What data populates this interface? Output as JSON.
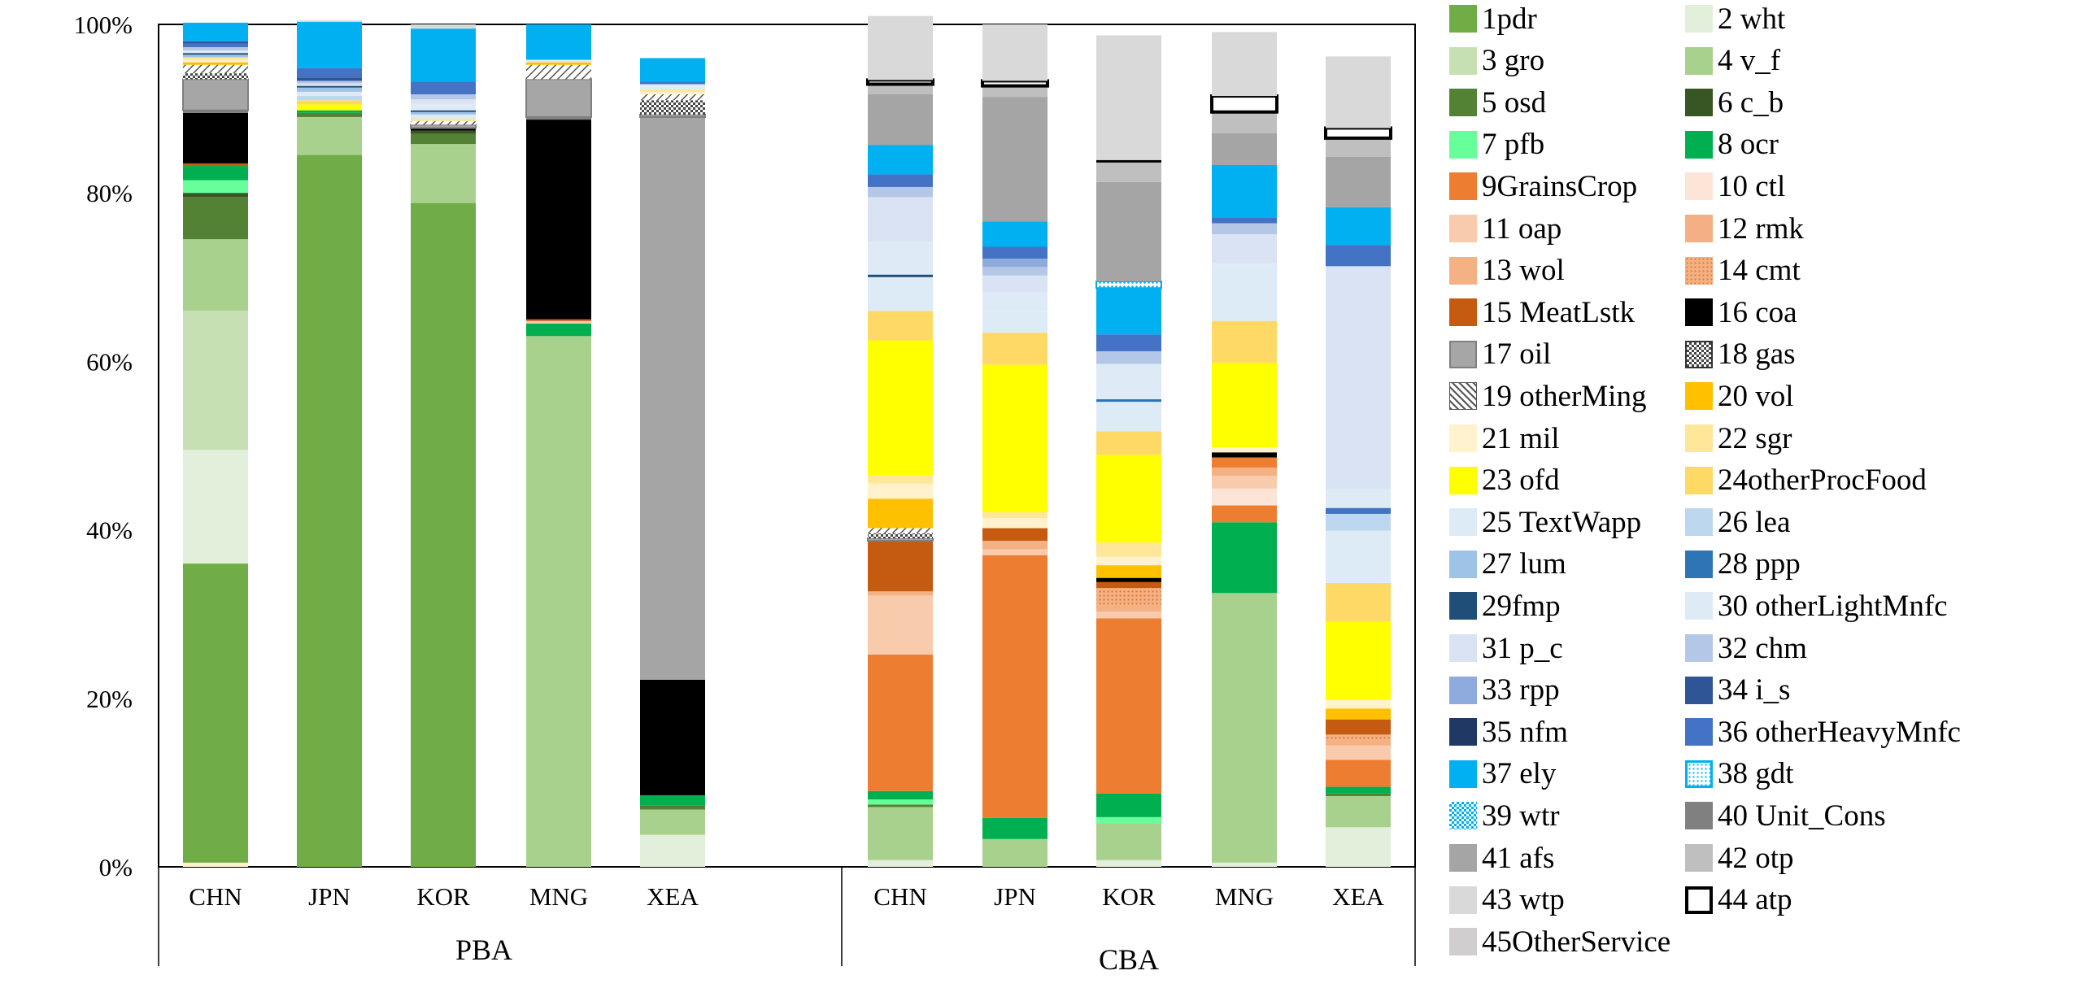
{
  "chart_data": {
    "type": "bar",
    "stacked": true,
    "percent_stacked": true,
    "y_axis": {
      "min": 0,
      "max": 100,
      "ticks": [
        "0%",
        "20%",
        "40%",
        "60%",
        "80%",
        "100%"
      ]
    },
    "groups": [
      {
        "label": "PBA",
        "categories": [
          "CHN",
          "JPN",
          "KOR",
          "MNG",
          "XEA"
        ]
      },
      {
        "label": "CBA",
        "categories": [
          "CHN",
          "JPN",
          "KOR",
          "MNG",
          "XEA"
        ]
      }
    ],
    "series": [
      {
        "name": "1pdr",
        "color": "#70ad47"
      },
      {
        "name": "2 wht",
        "color": "#e2efda"
      },
      {
        "name": "3 gro",
        "color": "#c6e0b4"
      },
      {
        "name": "4 v_f",
        "color": "#a9d18e"
      },
      {
        "name": "5 osd",
        "color": "#548235"
      },
      {
        "name": "6 c_b",
        "color": "#375623"
      },
      {
        "name": "7 pfb",
        "color": "#66ff99"
      },
      {
        "name": "8 ocr",
        "color": "#00b050"
      },
      {
        "name": "9GrainsCrop",
        "color": "#ed7d31"
      },
      {
        "name": "10 ctl",
        "color": "#fce4d6"
      },
      {
        "name": "11 oap",
        "color": "#f8cbad"
      },
      {
        "name": "12 rmk",
        "color": "#f4b084"
      },
      {
        "name": "13 wol",
        "color": "#f4b183"
      },
      {
        "name": "14 cmt",
        "color": "#f4a460",
        "pattern": "dotted"
      },
      {
        "name": "15 MeatLstk",
        "color": "#c55a11"
      },
      {
        "name": "16 coa",
        "color": "#000000"
      },
      {
        "name": "17 oil",
        "color": "#a6a6a6",
        "border": "#7f7f7f"
      },
      {
        "name": "18 gas",
        "color": "#bfbfbf",
        "pattern": "checker"
      },
      {
        "name": "19 otherMing",
        "color": "#ffffff",
        "pattern": "hatch"
      },
      {
        "name": "20 vol",
        "color": "#ffc000"
      },
      {
        "name": "21 mil",
        "color": "#fff2cc"
      },
      {
        "name": "22 sgr",
        "color": "#ffe699"
      },
      {
        "name": "23 ofd",
        "color": "#ffff00"
      },
      {
        "name": "24otherProcFood",
        "color": "#ffd966"
      },
      {
        "name": "25 TextWapp",
        "color": "#ddebf7"
      },
      {
        "name": "26 lea",
        "color": "#bdd7ee"
      },
      {
        "name": "27 lum",
        "color": "#9dc3e6"
      },
      {
        "name": "28 ppp",
        "color": "#2e75b6"
      },
      {
        "name": "29fmp",
        "color": "#1f4e79"
      },
      {
        "name": "30 otherLightMnfc",
        "color": "#deebf7"
      },
      {
        "name": "31 p_c",
        "color": "#dae3f3"
      },
      {
        "name": "32 chm",
        "color": "#b4c7e7"
      },
      {
        "name": "33 rpp",
        "color": "#8faadc"
      },
      {
        "name": "34 i_s",
        "color": "#2f5597"
      },
      {
        "name": "35 nfm",
        "color": "#203864"
      },
      {
        "name": "36 otherHeavyMnfc",
        "color": "#4472c4"
      },
      {
        "name": "37 ely",
        "color": "#00b0f0"
      },
      {
        "name": "38 gdt",
        "color": "#ffffff",
        "border": "#00b0f0",
        "pattern": "dotted-blue"
      },
      {
        "name": "39 wtr",
        "color": "#00b0f0",
        "pattern": "checker-blue"
      },
      {
        "name": "40 Unit_Cons",
        "color": "#808080"
      },
      {
        "name": "41 afs",
        "color": "#a5a5a5"
      },
      {
        "name": "42 otp",
        "color": "#bfbfbf"
      },
      {
        "name": "43 wtp",
        "color": "#d9d9d9"
      },
      {
        "name": "44 atp",
        "color": "#ffffff",
        "border": "#000000"
      },
      {
        "name": "45OtherService",
        "color": "#d0cece"
      }
    ],
    "stacks": [
      {
        "group": "PBA",
        "category": "CHN",
        "segments": [
          [
            "21 mil",
            0.5
          ],
          [
            "1pdr",
            35.5
          ],
          [
            "2 wht",
            13.5
          ],
          [
            "3 gro",
            16.5
          ],
          [
            "4 v_f",
            8.5
          ],
          [
            "5 osd",
            5
          ],
          [
            "6 c_b",
            0.5
          ],
          [
            "7 pfb",
            1.5
          ],
          [
            "8 ocr",
            1.7
          ],
          [
            "15 MeatLstk",
            0.3
          ],
          [
            "16 coa",
            6
          ],
          [
            "40 Unit_Cons",
            0.3
          ],
          [
            "17 oil",
            3.7
          ],
          [
            "18 gas",
            0.7
          ],
          [
            "19 otherMing",
            1
          ],
          [
            "20 vol",
            0.3
          ],
          [
            "21 mil",
            0.3
          ],
          [
            "22 sgr",
            0.3
          ],
          [
            "27 lum",
            0.3
          ],
          [
            "29fmp",
            0.2
          ],
          [
            "30 otherLightMnfc",
            0.3
          ],
          [
            "32 chm",
            0.4
          ],
          [
            "36 otherHeavyMnfc",
            0.4
          ],
          [
            "34 i_s",
            0.3
          ],
          [
            "37 ely",
            2.2
          ]
        ]
      },
      {
        "group": "PBA",
        "category": "JPN",
        "segments": [
          [
            "1pdr",
            84.5
          ],
          [
            "4 v_f",
            4.5
          ],
          [
            "5 osd",
            0.5
          ],
          [
            "8 ocr",
            0.3
          ],
          [
            "23 ofd",
            0.7
          ],
          [
            "24otherProcFood",
            0.5
          ],
          [
            "26 lea",
            0.5
          ],
          [
            "30 otherLightMnfc",
            0.5
          ],
          [
            "27 lum",
            0.5
          ],
          [
            "29fmp",
            0.2
          ],
          [
            "31 p_c",
            0.3
          ],
          [
            "32 chm",
            0.3
          ],
          [
            "34 i_s",
            0.4
          ],
          [
            "36 otherHeavyMnfc",
            1.1
          ],
          [
            "37 ely",
            5.5
          ],
          [
            "43 wtp",
            0.2
          ]
        ]
      },
      {
        "group": "PBA",
        "category": "KOR",
        "segments": [
          [
            "1pdr",
            78.8
          ],
          [
            "4 v_f",
            7
          ],
          [
            "5 osd",
            1.2
          ],
          [
            "6 c_b",
            0.4
          ],
          [
            "16 coa",
            0.3
          ],
          [
            "17 oil",
            0.4
          ],
          [
            "19 otherMing",
            0.4
          ],
          [
            "22 sgr",
            0.3
          ],
          [
            "25 TextWapp",
            0.5
          ],
          [
            "27 lum",
            0.3
          ],
          [
            "29fmp",
            0.2
          ],
          [
            "30 otherLightMnfc",
            0.8
          ],
          [
            "31 p_c",
            0.5
          ],
          [
            "32 chm",
            0.6
          ],
          [
            "36 otherHeavyMnfc",
            1.5
          ],
          [
            "37 ely",
            6.3
          ],
          [
            "43 wtp",
            0.5
          ]
        ]
      },
      {
        "group": "PBA",
        "category": "MNG",
        "segments": [
          [
            "4 v_f",
            63
          ],
          [
            "8 ocr",
            1.5
          ],
          [
            "11 oap",
            0.3
          ],
          [
            "15 MeatLstk",
            0.2
          ],
          [
            "16 coa",
            23.7
          ],
          [
            "40 Unit_Cons",
            0.3
          ],
          [
            "17 oil",
            4.5
          ],
          [
            "19 otherMing",
            1.7
          ],
          [
            "20 vol",
            0.3
          ],
          [
            "30 otherLightMnfc",
            0.3
          ],
          [
            "37 ely",
            4.2
          ]
        ]
      },
      {
        "group": "PBA",
        "category": "XEA",
        "segments": [
          [
            "2 wht",
            3.8
          ],
          [
            "4 v_f",
            3
          ],
          [
            "5 osd",
            0.5
          ],
          [
            "8 ocr",
            1.2
          ],
          [
            "16 coa",
            13.7
          ],
          [
            "41 afs",
            66.8
          ],
          [
            "17 oil",
            0.3
          ],
          [
            "18 gas",
            1.7
          ],
          [
            "19 otherMing",
            0.7
          ],
          [
            "21 mil",
            0.3
          ],
          [
            "22 sgr",
            0.3
          ],
          [
            "25 TextWapp",
            0.3
          ],
          [
            "30 otherLightMnfc",
            0.3
          ],
          [
            "36 otherHeavyMnfc",
            0.3
          ],
          [
            "37 ely",
            2.8
          ]
        ]
      },
      {
        "group": "CBA",
        "category": "CHN",
        "segments": [
          [
            "2 wht",
            0.8
          ],
          [
            "4 v_f",
            6.3
          ],
          [
            "5 osd",
            0.3
          ],
          [
            "7 pfb",
            0.6
          ],
          [
            "8 ocr",
            1
          ],
          [
            "9GrainsCrop",
            16.2
          ],
          [
            "11 oap",
            7
          ],
          [
            "13 wol",
            0.5
          ],
          [
            "15 MeatLstk",
            6
          ],
          [
            "17 oil",
            0.3
          ],
          [
            "18 gas",
            0.6
          ],
          [
            "19 otherMing",
            0.6
          ],
          [
            "20 vol",
            3.5
          ],
          [
            "21 mil",
            1.8
          ],
          [
            "22 sgr",
            1
          ],
          [
            "23 ofd",
            16
          ],
          [
            "24otherProcFood",
            3.5
          ],
          [
            "25 TextWapp",
            4
          ],
          [
            "29fmp",
            0.3
          ],
          [
            "30 otherLightMnfc",
            3.9
          ],
          [
            "31 p_c",
            5.3
          ],
          [
            "32 chm",
            1.2
          ],
          [
            "36 otherHeavyMnfc",
            1.5
          ],
          [
            "37 ely",
            3.5
          ],
          [
            "41 afs",
            6
          ],
          [
            "42 otp",
            1.2
          ],
          [
            "44 atp",
            0.5
          ],
          [
            "43 wtp",
            7.6
          ]
        ]
      },
      {
        "group": "CBA",
        "category": "JPN",
        "segments": [
          [
            "4 v_f",
            3.3
          ],
          [
            "8 ocr",
            2.5
          ],
          [
            "9GrainsCrop",
            31.2
          ],
          [
            "11 oap",
            0.7
          ],
          [
            "13 wol",
            1
          ],
          [
            "15 MeatLstk",
            1.5
          ],
          [
            "21 mil",
            1.2
          ],
          [
            "22 sgr",
            0.7
          ],
          [
            "23 ofd",
            17.5
          ],
          [
            "24otherProcFood",
            3.8
          ],
          [
            "25 TextWapp",
            2.5
          ],
          [
            "30 otherLightMnfc",
            2.3
          ],
          [
            "31 p_c",
            2
          ],
          [
            "32 chm",
            1
          ],
          [
            "33 rpp",
            1
          ],
          [
            "36 otherHeavyMnfc",
            1.4
          ],
          [
            "37 ely",
            3
          ],
          [
            "41 afs",
            14.8
          ],
          [
            "42 otp",
            1.3
          ],
          [
            "44 atp",
            0.6
          ],
          [
            "43 wtp",
            6.7
          ]
        ]
      },
      {
        "group": "CBA",
        "category": "KOR",
        "segments": [
          [
            "2 wht",
            0.8
          ],
          [
            "4 v_f",
            4.4
          ],
          [
            "7 pfb",
            0.7
          ],
          [
            "8 ocr",
            2.8
          ],
          [
            "9GrainsCrop",
            20.8
          ],
          [
            "11 oap",
            0.8
          ],
          [
            "13 wol",
            0.8
          ],
          [
            "14 cmt",
            2
          ],
          [
            "15 MeatLstk",
            0.7
          ],
          [
            "16 coa",
            0.5
          ],
          [
            "20 vol",
            1.5
          ],
          [
            "21 mil",
            1
          ],
          [
            "22 sgr",
            1.7
          ],
          [
            "23 ofd",
            10.4
          ],
          [
            "24otherProcFood",
            2.8
          ],
          [
            "25 TextWapp",
            3.5
          ],
          [
            "28 ppp",
            0.3
          ],
          [
            "30 otherLightMnfc",
            4.2
          ],
          [
            "32 chm",
            1.5
          ],
          [
            "36 otherHeavyMnfc",
            2
          ],
          [
            "37 ely",
            5.5
          ],
          [
            "38 gdt",
            0.8
          ],
          [
            "41 afs",
            11.8
          ],
          [
            "42 otp",
            2.3
          ],
          [
            "16 coa",
            0.3
          ],
          [
            "43 wtp",
            14.8
          ]
        ]
      },
      {
        "group": "CBA",
        "category": "MNG",
        "segments": [
          [
            "2 wht",
            0.5
          ],
          [
            "4 v_f",
            32
          ],
          [
            "8 ocr",
            8.4
          ],
          [
            "9GrainsCrop",
            2
          ],
          [
            "10 ctl",
            2
          ],
          [
            "11 oap",
            1.5
          ],
          [
            "13 wol",
            1
          ],
          [
            "9GrainsCrop",
            1.2
          ],
          [
            "16 coa",
            0.6
          ],
          [
            "21 mil",
            0.6
          ],
          [
            "23 ofd",
            10
          ],
          [
            "24otherProcFood",
            5
          ],
          [
            "25 TextWapp",
            6.5
          ],
          [
            "30 otherLightMnfc",
            0.3
          ],
          [
            "31 p_c",
            3.5
          ],
          [
            "32 chm",
            1.3
          ],
          [
            "36 otherHeavyMnfc",
            0.7
          ],
          [
            "37 ely",
            6.2
          ],
          [
            "41 afs",
            3.8
          ],
          [
            "42 otp",
            2.5
          ],
          [
            "44 atp",
            1.9
          ],
          [
            "43 wtp",
            7.6
          ]
        ]
      },
      {
        "group": "CBA",
        "category": "XEA",
        "segments": [
          [
            "2 wht",
            4.7
          ],
          [
            "4 v_f",
            3.7
          ],
          [
            "5 osd",
            0.3
          ],
          [
            "8 ocr",
            0.8
          ],
          [
            "9GrainsCrop",
            3.2
          ],
          [
            "11 oap",
            1.7
          ],
          [
            "13 wol",
            0.8
          ],
          [
            "14 cmt",
            0.5
          ],
          [
            "15 MeatLstk",
            1.8
          ],
          [
            "20 vol",
            1.3
          ],
          [
            "21 mil",
            1
          ],
          [
            "23 ofd",
            9.3
          ],
          [
            "24otherProcFood",
            4.6
          ],
          [
            "25 TextWapp",
            6.2
          ],
          [
            "26 lea",
            2
          ],
          [
            "36 otherHeavyMnfc",
            0.7
          ],
          [
            "30 otherLightMnfc",
            2.2
          ],
          [
            "31 p_c",
            26.5
          ],
          [
            "36 otherHeavyMnfc",
            2.5
          ],
          [
            "37 ely",
            4.5
          ],
          [
            "41 afs",
            6
          ],
          [
            "42 otp",
            2.2
          ],
          [
            "44 atp",
            1.2
          ],
          [
            "43 wtp",
            8.5
          ]
        ]
      }
    ]
  }
}
